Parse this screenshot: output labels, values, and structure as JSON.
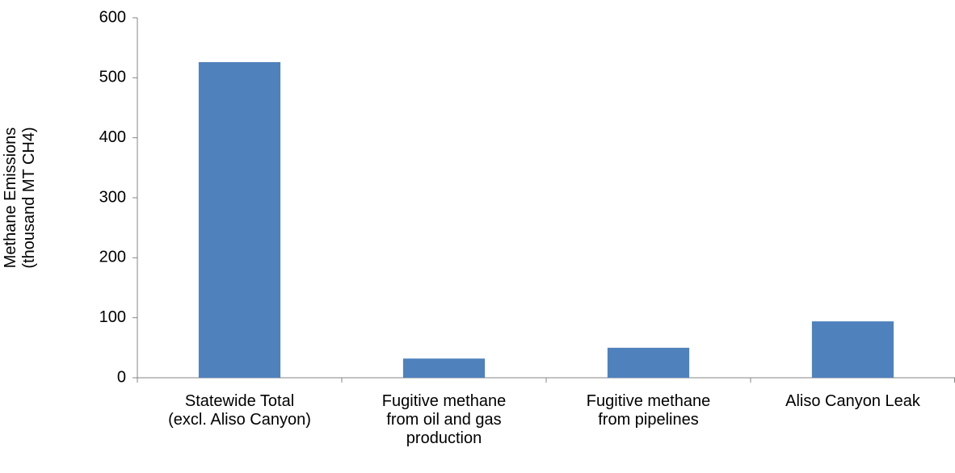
{
  "chart_data": {
    "type": "bar",
    "y_label": "Methane Emissions (thousand MT CH4)",
    "categories": [
      "Statewide Total (excl. Aliso Canyon)",
      "Fugitive methane from oil and gas production",
      "Fugitive methane from pipelines",
      "Aliso Canyon Leak"
    ],
    "values": [
      526,
      32,
      50,
      94
    ],
    "color": "#4f81bd",
    "ylim": [
      0,
      600
    ],
    "yticks": [
      0,
      100,
      200,
      300,
      400,
      500,
      600
    ],
    "grid": false
  }
}
